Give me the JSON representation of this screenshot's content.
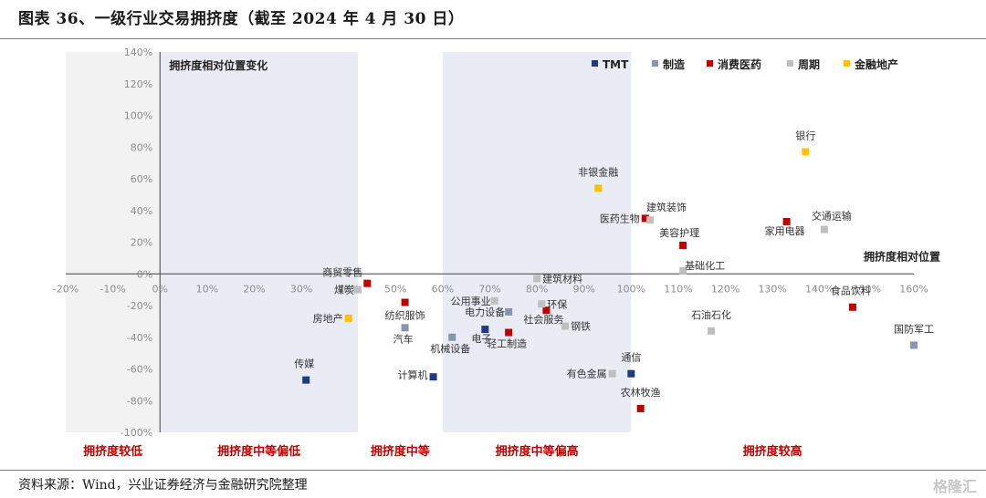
{
  "title": "图表 36、一级行业交易拥挤度（截至 2024 年 4 月 30 日）",
  "source": "资料来源：Wind，兴业证券经济与金融研究院整理",
  "watermark": "格隆汇",
  "chart_data": {
    "type": "scatter",
    "xlim": [
      -0.2,
      1.6
    ],
    "ylim": [
      -1.0,
      1.4
    ],
    "x_ticks": [
      "-20%",
      "-10%",
      "0%",
      "10%",
      "20%",
      "30%",
      "40%",
      "50%",
      "60%",
      "70%",
      "80%",
      "90%",
      "100%",
      "110%",
      "120%",
      "130%",
      "140%",
      "150%",
      "160%"
    ],
    "y_ticks": [
      "140%",
      "120%",
      "100%",
      "80%",
      "60%",
      "40%",
      "20%",
      "0%",
      "-20%",
      "-40%",
      "-60%",
      "-80%",
      "-100%"
    ],
    "corner_labels": {
      "y_axis": "拥挤度相对位置变化",
      "x_axis": "拥挤度相对位置"
    },
    "zones": [
      "拥挤度较低",
      "拥挤度中等偏低",
      "拥挤度中等",
      "拥挤度中等偏高",
      "拥挤度较高"
    ],
    "series": [
      {
        "name": "TMT",
        "color": "#1f3a7d",
        "points": [
          {
            "label": "传媒",
            "x": 0.31,
            "y": -0.67
          },
          {
            "label": "计算机",
            "x": 0.58,
            "y": -0.65
          },
          {
            "label": "电子",
            "x": 0.69,
            "y": -0.35
          },
          {
            "label": "通信",
            "x": 1.0,
            "y": -0.63
          }
        ]
      },
      {
        "name": "制造",
        "color": "#8496b0",
        "points": [
          {
            "label": "汽车",
            "x": 0.52,
            "y": -0.34
          },
          {
            "label": "机械设备",
            "x": 0.62,
            "y": -0.4
          },
          {
            "label": "电力设备",
            "x": 0.74,
            "y": -0.24
          },
          {
            "label": "国防军工",
            "x": 1.6,
            "y": -0.45
          }
        ]
      },
      {
        "name": "消费医药",
        "color": "#c00000",
        "points": [
          {
            "label": "商贸零售",
            "x": 0.44,
            "y": -0.06
          },
          {
            "label": "纺织服饰",
            "x": 0.52,
            "y": -0.18
          },
          {
            "label": "轻工制造",
            "x": 0.74,
            "y": -0.37
          },
          {
            "label": "社会服务",
            "x": 0.82,
            "y": -0.23
          },
          {
            "label": "医药生物",
            "x": 1.03,
            "y": 0.35
          },
          {
            "label": "美容护理",
            "x": 1.11,
            "y": 0.18
          },
          {
            "label": "家用电器",
            "x": 1.33,
            "y": 0.33
          },
          {
            "label": "食品饮料",
            "x": 1.47,
            "y": -0.21
          },
          {
            "label": "农林牧渔",
            "x": 1.02,
            "y": -0.85
          }
        ]
      },
      {
        "name": "周期",
        "color": "#bfbfbf",
        "points": [
          {
            "label": "煤炭",
            "x": 0.42,
            "y": -0.1
          },
          {
            "label": "公用事业",
            "x": 0.71,
            "y": -0.17
          },
          {
            "label": "建筑材料",
            "x": 0.8,
            "y": -0.03
          },
          {
            "label": "环保",
            "x": 0.81,
            "y": -0.19
          },
          {
            "label": "钢铁",
            "x": 0.86,
            "y": -0.33
          },
          {
            "label": "有色金属",
            "x": 0.96,
            "y": -0.63
          },
          {
            "label": "建筑装饰",
            "x": 1.04,
            "y": 0.34
          },
          {
            "label": "基础化工",
            "x": 1.11,
            "y": 0.02
          },
          {
            "label": "石油石化",
            "x": 1.17,
            "y": -0.36
          },
          {
            "label": "交通运输",
            "x": 1.41,
            "y": 0.28
          }
        ]
      },
      {
        "name": "金融地产",
        "color": "#ffc000",
        "points": [
          {
            "label": "房地产",
            "x": 0.4,
            "y": -0.28
          },
          {
            "label": "非银金融",
            "x": 0.93,
            "y": 0.54
          },
          {
            "label": "银行",
            "x": 1.37,
            "y": 0.77
          }
        ]
      }
    ]
  }
}
